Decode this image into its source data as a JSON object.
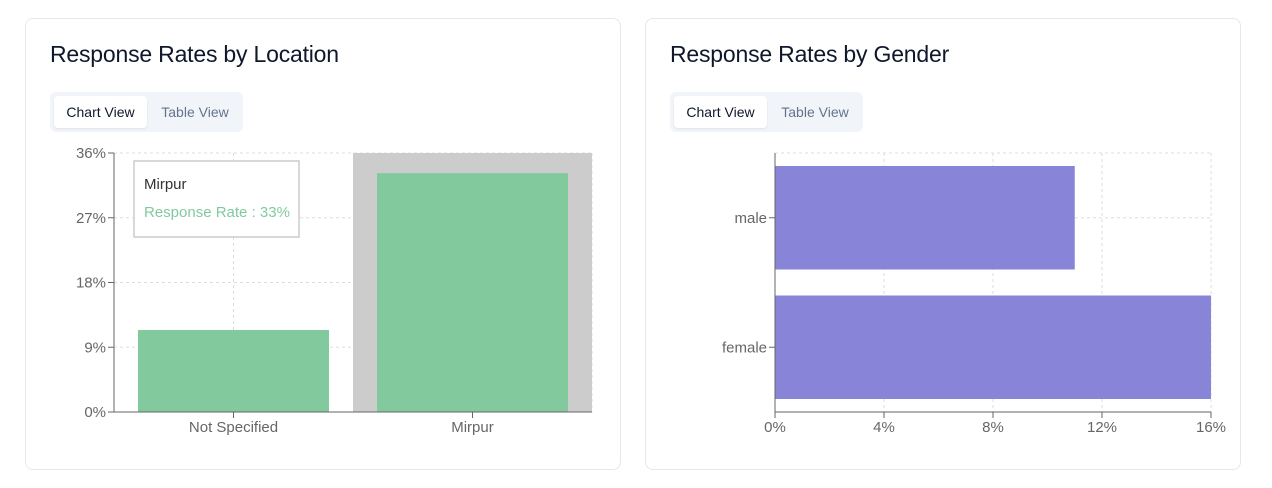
{
  "location_panel": {
    "title": "Response Rates by Location",
    "tabs": {
      "chart": "Chart View",
      "table": "Table View"
    },
    "tooltip": {
      "label": "Mirpur",
      "series_label": "Response Rate",
      "value_text": "33%"
    }
  },
  "gender_panel": {
    "title": "Response Rates by Gender",
    "tabs": {
      "chart": "Chart View",
      "table": "Table View"
    }
  },
  "colors": {
    "location_bar": "#82ca9d",
    "gender_bar": "#8884d8",
    "hover_cursor": "#cccccc"
  },
  "chart_data": [
    {
      "type": "bar",
      "orientation": "vertical",
      "categories": [
        "Not Specified",
        "Mirpur"
      ],
      "values": [
        11.4,
        33.2
      ],
      "ylim": [
        0,
        36
      ],
      "yticks": [
        "0%",
        "9%",
        "18%",
        "27%",
        "36%"
      ],
      "grid": true,
      "hovered_category": "Mirpur"
    },
    {
      "type": "bar",
      "orientation": "horizontal",
      "categories": [
        "male",
        "female"
      ],
      "values": [
        11,
        16.2
      ],
      "xlim": [
        0,
        16
      ],
      "xticks": [
        "0%",
        "4%",
        "8%",
        "12%",
        "16%"
      ],
      "grid": true
    }
  ]
}
